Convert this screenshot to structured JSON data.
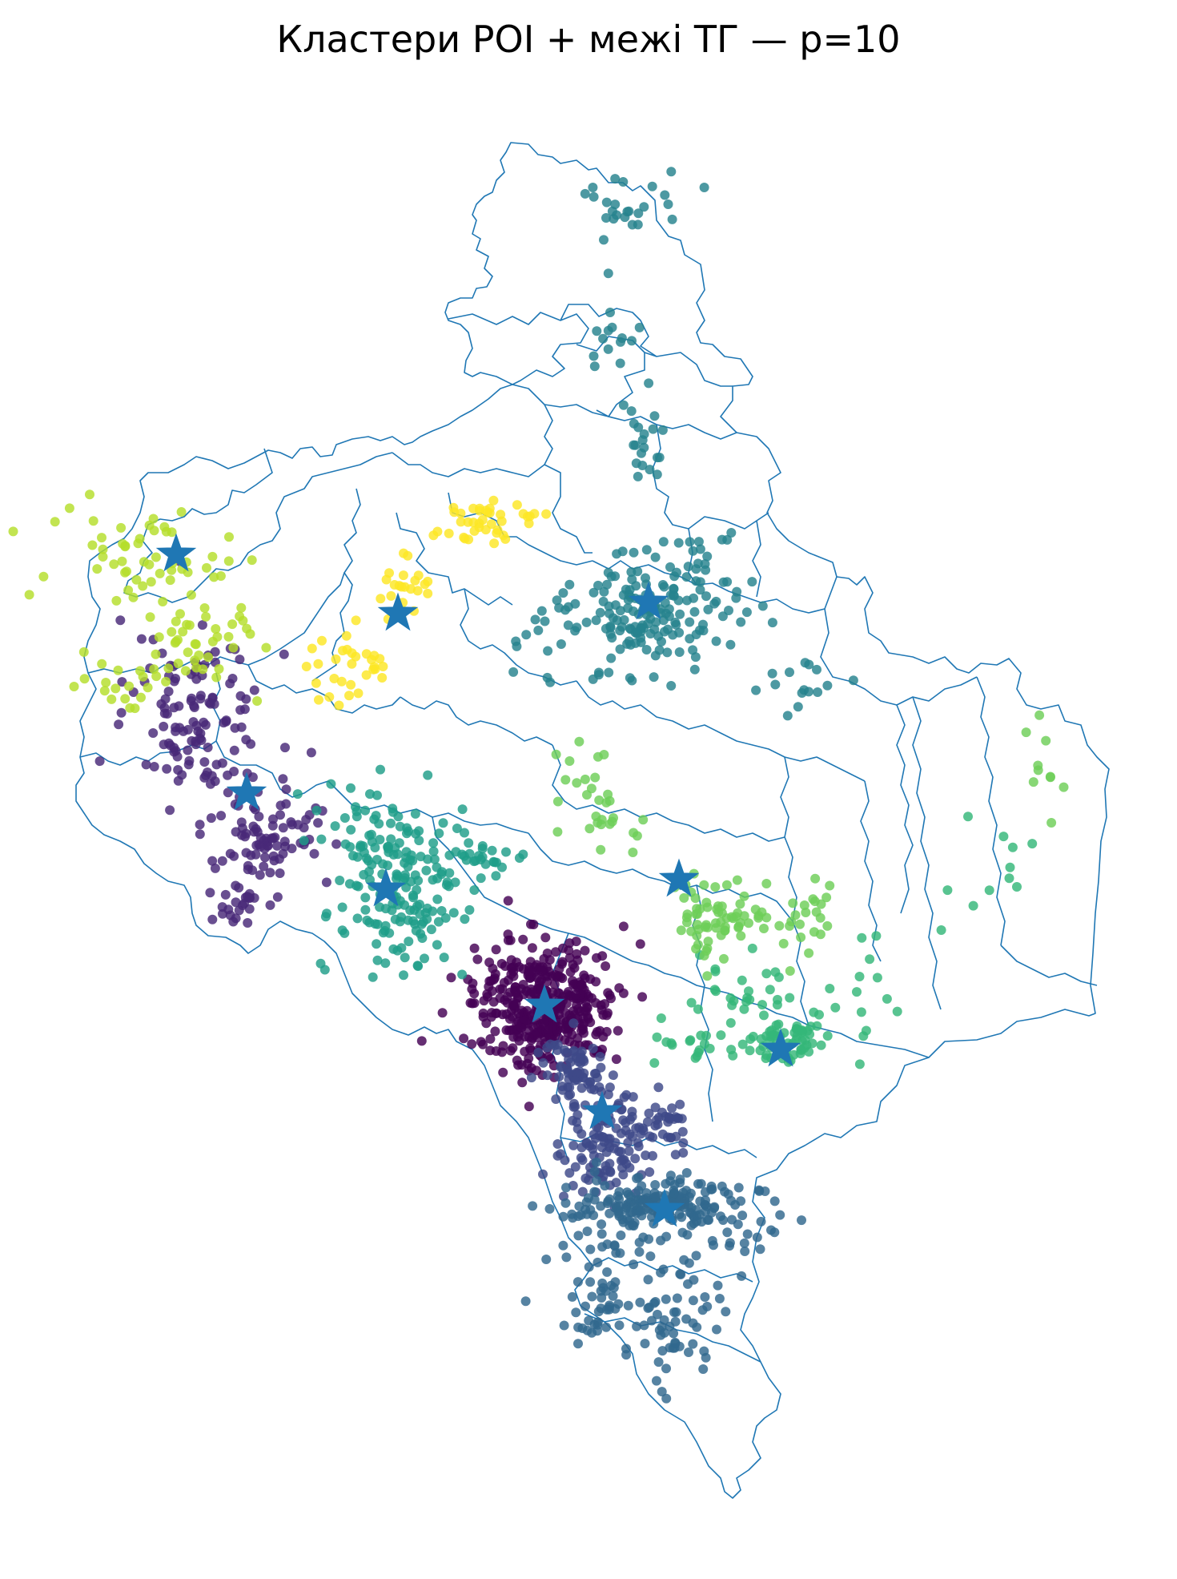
{
  "title": "Кластери POI + межі ТГ — p=10",
  "colors": {
    "boundary": "#1f77b4",
    "centroid": "#1f77b4",
    "clusters": [
      "#440154",
      "#482878",
      "#3e4989",
      "#31688e",
      "#26828e",
      "#1f9e89",
      "#35b779",
      "#6ece58",
      "#b5de2b",
      "#fde725"
    ]
  },
  "marker_icons": {
    "centroid": "star-icon",
    "poi": "circle-icon"
  },
  "chart_data": {
    "type": "scatter",
    "title": "Кластери POI + межі ТГ — p=10",
    "axes_visible": false,
    "n_clusters": 10,
    "series": [
      {
        "cluster": 0,
        "color": "#440154",
        "centroid": [
          680,
          1255
        ],
        "points": []
      },
      {
        "cluster": 1,
        "color": "#482878",
        "centroid": [
          308,
          990
        ],
        "points": []
      },
      {
        "cluster": 2,
        "color": "#3e4989",
        "centroid": [
          752,
          1388
        ],
        "points": []
      },
      {
        "cluster": 3,
        "color": "#31688e",
        "centroid": [
          830,
          1510
        ],
        "points": []
      },
      {
        "cluster": 4,
        "color": "#26828e",
        "centroid": [
          810,
          752
        ],
        "points": []
      },
      {
        "cluster": 5,
        "color": "#1f9e89",
        "centroid": [
          482,
          1110
        ],
        "points": []
      },
      {
        "cluster": 6,
        "color": "#35b779",
        "centroid": [
          975,
          1310
        ],
        "points": []
      },
      {
        "cluster": 7,
        "color": "#6ece58",
        "centroid": [
          848,
          1098
        ],
        "points": []
      },
      {
        "cluster": 8,
        "color": "#b5de2b",
        "centroid": [
          220,
          692
        ],
        "points": []
      },
      {
        "cluster": 9,
        "color": "#fde725",
        "centroid": [
          497,
          766
        ],
        "points": []
      }
    ]
  }
}
